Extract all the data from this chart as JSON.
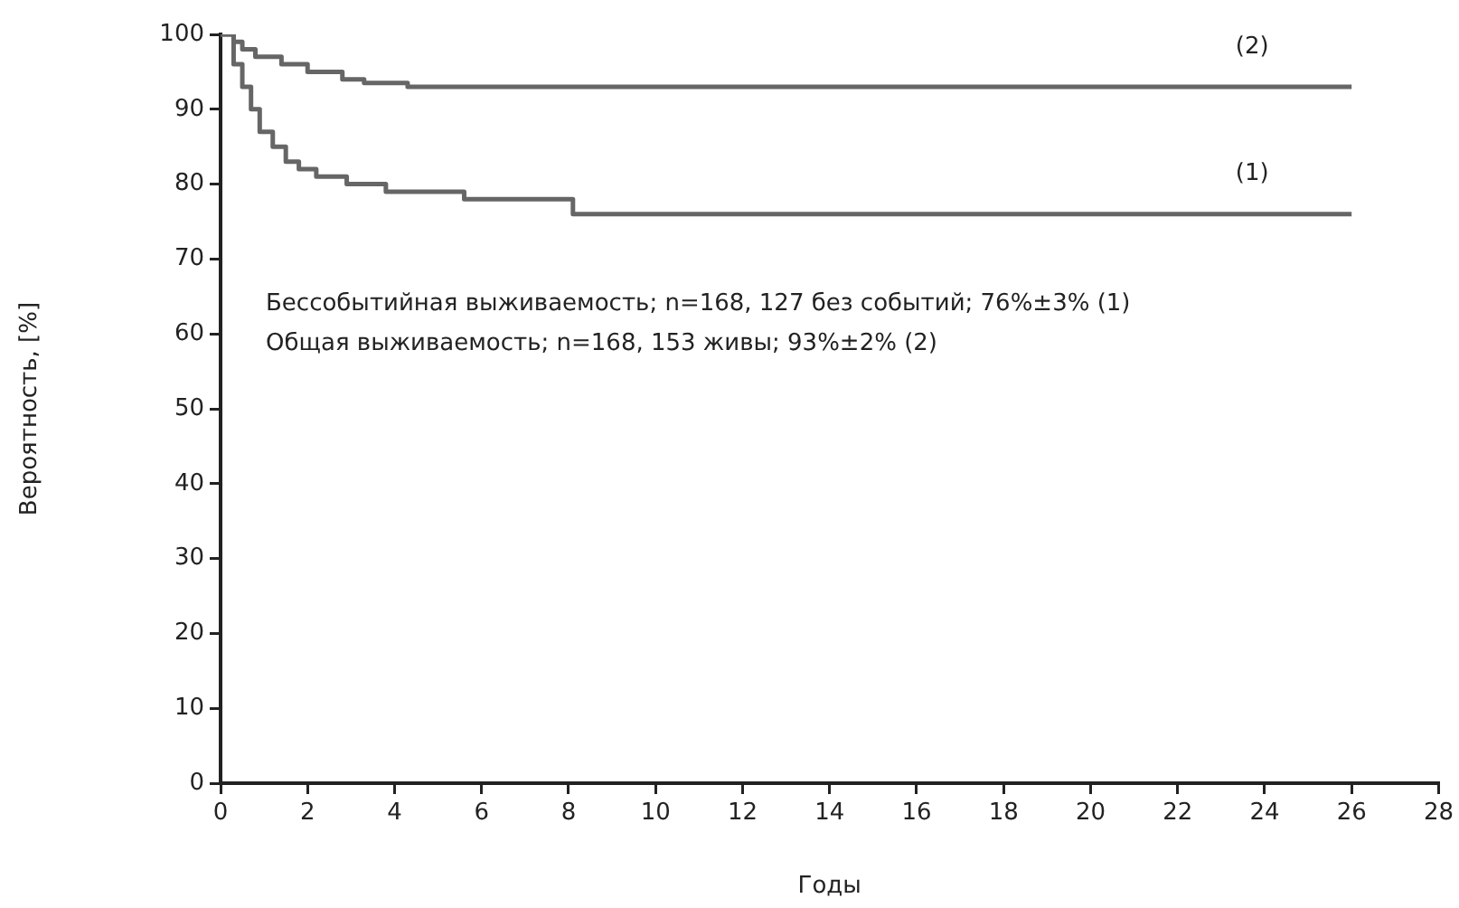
{
  "chart_data": {
    "type": "step",
    "xlabel": "Годы",
    "ylabel": "Вероятность, [%]",
    "xlim": [
      0,
      28
    ],
    "xticks": [
      0,
      2,
      4,
      6,
      8,
      10,
      12,
      14,
      16,
      18,
      20,
      22,
      24,
      26,
      28
    ],
    "ylim": [
      0,
      100
    ],
    "yticks": [
      0,
      10,
      20,
      30,
      40,
      50,
      60,
      70,
      80,
      90,
      100
    ],
    "grid": false,
    "legend": false,
    "marker": "none",
    "line_style": "solid",
    "series": [
      {
        "name": "(1)",
        "color": "#666666",
        "x": [
          0,
          0.3,
          0.5,
          0.7,
          0.9,
          1.2,
          1.5,
          1.8,
          2.2,
          2.9,
          3.8,
          5.6,
          8.1,
          26
        ],
        "values": [
          100,
          96,
          93,
          90,
          87,
          85,
          83,
          82,
          81,
          80,
          79,
          78,
          76,
          76
        ]
      },
      {
        "name": "(2)",
        "color": "#666666",
        "x": [
          0,
          0.3,
          0.5,
          0.8,
          1.4,
          2.0,
          2.8,
          3.3,
          4.3,
          26
        ],
        "values": [
          100,
          99,
          98,
          97,
          96,
          95,
          94,
          93.5,
          93,
          93
        ]
      }
    ],
    "annotations": [
      "Бессобытийная выживаемость; n=168, 127 без событий; 76%±3% (1)",
      "Общая выживаемость; n=168, 153 живы; 93%±2% (2)"
    ]
  }
}
